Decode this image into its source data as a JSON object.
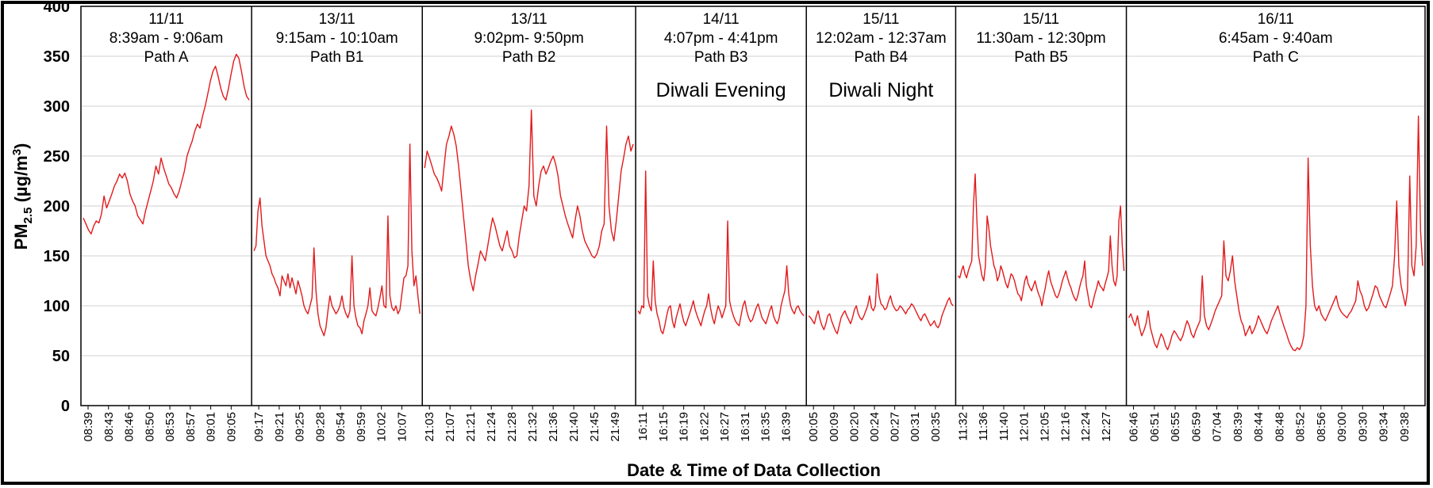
{
  "chart_data": {
    "type": "line",
    "title": "",
    "xlabel": "Date & Time of Data Collection",
    "ylabel": {
      "prefix": "PM",
      "subscript": "2.5",
      "units_open": " (µg/m",
      "units_sup": "3",
      "units_close": ")"
    },
    "ylim": [
      0,
      400
    ],
    "yticks": [
      "0",
      "50",
      "100",
      "150",
      "200",
      "250",
      "300",
      "350",
      "400"
    ],
    "grid": "horizontal",
    "line_color": "#e31a1c",
    "segments": [
      {
        "date": "11/11",
        "time_range": "8:39am - 9:06am",
        "path": "Path A",
        "event": "",
        "ticks": [
          "08:39",
          "08:43",
          "08:46",
          "08:50",
          "08:53",
          "08:57",
          "09:01",
          "09:05"
        ],
        "y": [
          188,
          182,
          176,
          172,
          180,
          185,
          183,
          192,
          210,
          198,
          205,
          212,
          220,
          225,
          232,
          228,
          233,
          225,
          212,
          205,
          200,
          190,
          186,
          182,
          195,
          205,
          215,
          225,
          240,
          232,
          248,
          238,
          230,
          222,
          218,
          212,
          208,
          215,
          225,
          235,
          250,
          258,
          265,
          275,
          282,
          278,
          290,
          300,
          312,
          325,
          335,
          340,
          330,
          318,
          310,
          306,
          318,
          332,
          345,
          352,
          348,
          335,
          320,
          310,
          306
        ]
      },
      {
        "date": "13/11",
        "time_range": "9:15am - 10:10am",
        "path": "Path B1",
        "event": "",
        "ticks": [
          "09:17",
          "09:21",
          "09:25",
          "09:28",
          "09:54",
          "09:59",
          "10:02",
          "10:07"
        ],
        "y": [
          155,
          160,
          195,
          208,
          180,
          165,
          150,
          145,
          140,
          132,
          128,
          122,
          118,
          110,
          130,
          125,
          120,
          132,
          118,
          128,
          120,
          112,
          125,
          118,
          110,
          100,
          95,
          92,
          100,
          108,
          158,
          115,
          92,
          80,
          75,
          70,
          78,
          95,
          110,
          100,
          96,
          92,
          95,
          100,
          110,
          98,
          92,
          88,
          95,
          150,
          100,
          88,
          80,
          78,
          72,
          85,
          92,
          100,
          118,
          95,
          92,
          90,
          98,
          108,
          120,
          100,
          98,
          190,
          110,
          98,
          95,
          100,
          92,
          96,
          112,
          128,
          130,
          140,
          262,
          155,
          120,
          130,
          110,
          92
        ]
      },
      {
        "date": "13/11",
        "time_range": "9:02pm- 9:50pm",
        "path": "Path B2",
        "event": "",
        "ticks": [
          "21:03",
          "21:07",
          "21:21",
          "21:24",
          "21:28",
          "21:32",
          "21:36",
          "21:40",
          "21:45",
          "21:49"
        ],
        "y": [
          238,
          255,
          248,
          240,
          232,
          228,
          222,
          215,
          240,
          262,
          270,
          280,
          272,
          260,
          240,
          215,
          190,
          165,
          140,
          125,
          115,
          130,
          142,
          155,
          150,
          145,
          160,
          175,
          188,
          180,
          170,
          160,
          155,
          165,
          175,
          160,
          155,
          148,
          150,
          170,
          185,
          200,
          195,
          220,
          296,
          210,
          200,
          220,
          235,
          240,
          232,
          238,
          245,
          250,
          242,
          230,
          210,
          200,
          190,
          182,
          175,
          168,
          185,
          200,
          190,
          175,
          165,
          160,
          155,
          150,
          148,
          152,
          160,
          175,
          182,
          280,
          200,
          175,
          165,
          185,
          210,
          235,
          248,
          262,
          270,
          255,
          262
        ]
      },
      {
        "date": "14/11",
        "time_range": "4:07pm - 4:41pm",
        "path": "Path B3",
        "event": "Diwali Evening",
        "ticks": [
          "16:11",
          "16:15",
          "16:19",
          "16:22",
          "16:27",
          "16:31",
          "16:35",
          "16:39"
        ],
        "y": [
          95,
          92,
          100,
          98,
          235,
          110,
          100,
          95,
          145,
          105,
          92,
          85,
          75,
          72,
          80,
          90,
          98,
          100,
          85,
          78,
          88,
          95,
          102,
          92,
          84,
          80,
          86,
          92,
          98,
          105,
          96,
          90,
          85,
          80,
          88,
          95,
          100,
          112,
          98,
          88,
          82,
          92,
          100,
          95,
          88,
          94,
          100,
          185,
          105,
          96,
          90,
          85,
          82,
          80,
          90,
          100,
          105,
          95,
          88,
          84,
          86,
          92,
          98,
          102,
          95,
          88,
          85,
          82,
          88,
          95,
          100,
          90,
          85,
          82,
          88,
          100,
          108,
          115,
          140,
          112,
          100,
          95,
          92,
          98,
          100,
          95,
          92,
          90
        ]
      },
      {
        "date": "15/11",
        "time_range": "12:02am - 12:37am",
        "path": "Path B4",
        "event": "Diwali Night",
        "ticks": [
          "00:05",
          "00:09",
          "00:20",
          "00:24",
          "00:27",
          "00:31",
          "00:35"
        ],
        "y": [
          90,
          88,
          85,
          82,
          90,
          95,
          86,
          80,
          76,
          82,
          90,
          92,
          85,
          80,
          75,
          72,
          80,
          88,
          92,
          95,
          90,
          86,
          82,
          88,
          96,
          100,
          92,
          88,
          86,
          90,
          95,
          100,
          110,
          98,
          95,
          100,
          132,
          110,
          102,
          100,
          96,
          98,
          105,
          110,
          102,
          98,
          95,
          96,
          100,
          98,
          95,
          92,
          96,
          98,
          102,
          100,
          96,
          92,
          88,
          85,
          90,
          92,
          88,
          84,
          80,
          82,
          85,
          80,
          78,
          82,
          90,
          95,
          100,
          105,
          108,
          102,
          100
        ]
      },
      {
        "date": "15/11",
        "time_range": "11:30am - 12:30pm",
        "path": "Path B5",
        "event": "",
        "ticks": [
          "11:32",
          "11:36",
          "11:40",
          "12:01",
          "12:05",
          "12:16",
          "12:24",
          "12:27"
        ],
        "y": [
          130,
          128,
          135,
          140,
          132,
          128,
          135,
          140,
          145,
          200,
          232,
          185,
          150,
          140,
          130,
          125,
          140,
          190,
          178,
          160,
          150,
          140,
          135,
          125,
          130,
          140,
          135,
          128,
          122,
          118,
          125,
          132,
          130,
          125,
          118,
          112,
          110,
          105,
          115,
          125,
          130,
          122,
          118,
          115,
          120,
          125,
          118,
          112,
          108,
          100,
          110,
          118,
          128,
          135,
          125,
          120,
          115,
          110,
          108,
          112,
          118,
          125,
          130,
          135,
          128,
          122,
          118,
          112,
          108,
          105,
          110,
          118,
          125,
          130,
          145,
          120,
          110,
          100,
          98,
          105,
          112,
          118,
          125,
          120,
          118,
          115,
          122,
          128,
          135,
          170,
          140,
          125,
          120,
          130,
          185,
          200,
          160,
          135
        ]
      },
      {
        "date": "16/11",
        "time_range": "6:45am - 9:40am",
        "path": "Path C",
        "event": "",
        "ticks": [
          "06:46",
          "06:51",
          "06:55",
          "06:59",
          "07:04",
          "08:39",
          "08:44",
          "08:48",
          "08:52",
          "08:56",
          "09:00",
          "09:30",
          "09:34",
          "09:38"
        ],
        "y": [
          88,
          92,
          85,
          80,
          90,
          78,
          70,
          75,
          82,
          95,
          78,
          70,
          62,
          58,
          65,
          72,
          68,
          60,
          56,
          62,
          70,
          75,
          72,
          68,
          65,
          70,
          78,
          85,
          80,
          72,
          68,
          75,
          80,
          85,
          130,
          90,
          80,
          76,
          82,
          88,
          95,
          100,
          105,
          110,
          165,
          130,
          125,
          135,
          150,
          125,
          110,
          95,
          85,
          80,
          70,
          75,
          80,
          72,
          76,
          82,
          90,
          85,
          80,
          75,
          72,
          78,
          85,
          90,
          95,
          100,
          92,
          85,
          78,
          72,
          65,
          60,
          56,
          55,
          58,
          56,
          60,
          70,
          100,
          248,
          160,
          120,
          100,
          95,
          100,
          92,
          88,
          85,
          90,
          95,
          100,
          105,
          110,
          100,
          95,
          92,
          90,
          88,
          92,
          95,
          100,
          105,
          125,
          115,
          110,
          100,
          95,
          98,
          105,
          112,
          120,
          118,
          110,
          105,
          100,
          98,
          105,
          112,
          120,
          150,
          205,
          140,
          120,
          110,
          100,
          115,
          230,
          140,
          130,
          160,
          290,
          175,
          140
        ]
      }
    ]
  }
}
